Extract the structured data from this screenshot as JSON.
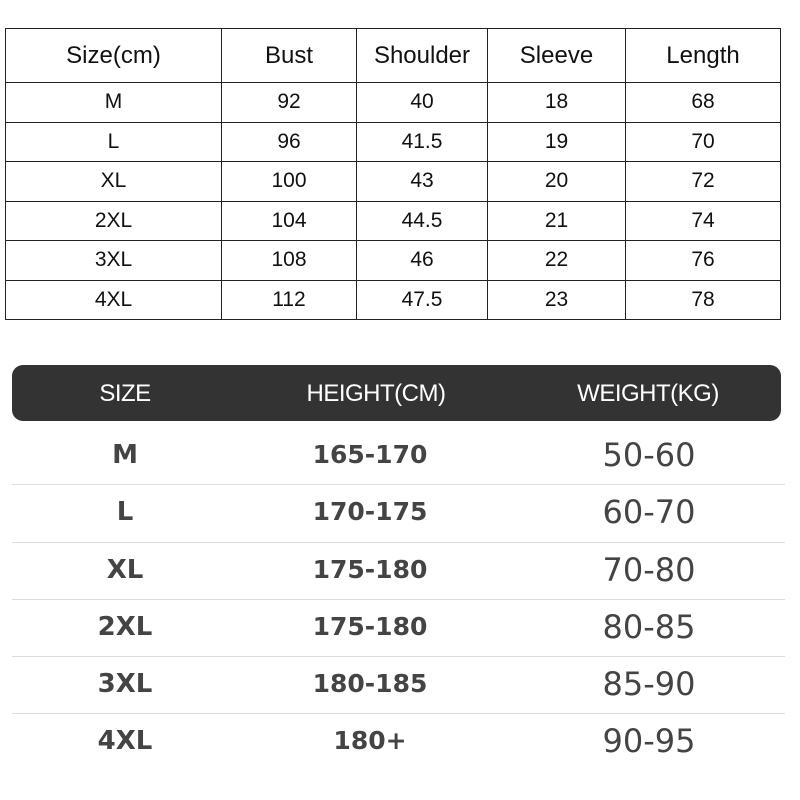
{
  "measurements": {
    "headers": [
      "Size(cm)",
      "Bust",
      "Shoulder",
      "Sleeve",
      "Length"
    ],
    "rows": [
      [
        "M",
        "92",
        "40",
        "18",
        "68"
      ],
      [
        "L",
        "96",
        "41.5",
        "19",
        "70"
      ],
      [
        "XL",
        "100",
        "43",
        "20",
        "72"
      ],
      [
        "2XL",
        "104",
        "44.5",
        "21",
        "74"
      ],
      [
        "3XL",
        "108",
        "46",
        "22",
        "76"
      ],
      [
        "4XL",
        "112",
        "47.5",
        "23",
        "78"
      ]
    ]
  },
  "recommendation": {
    "headers": [
      "SIZE",
      "HEIGHT(CM)",
      "WEIGHT(KG)"
    ],
    "header_bg": "#333333",
    "rows": [
      [
        "M",
        "165-170",
        "50-60"
      ],
      [
        "L",
        "170-175",
        "60-70"
      ],
      [
        "XL",
        "175-180",
        "70-80"
      ],
      [
        "2XL",
        "175-180",
        "80-85"
      ],
      [
        "3XL",
        "180-185",
        "85-90"
      ],
      [
        "4XL",
        "180+",
        "90-95"
      ]
    ]
  }
}
